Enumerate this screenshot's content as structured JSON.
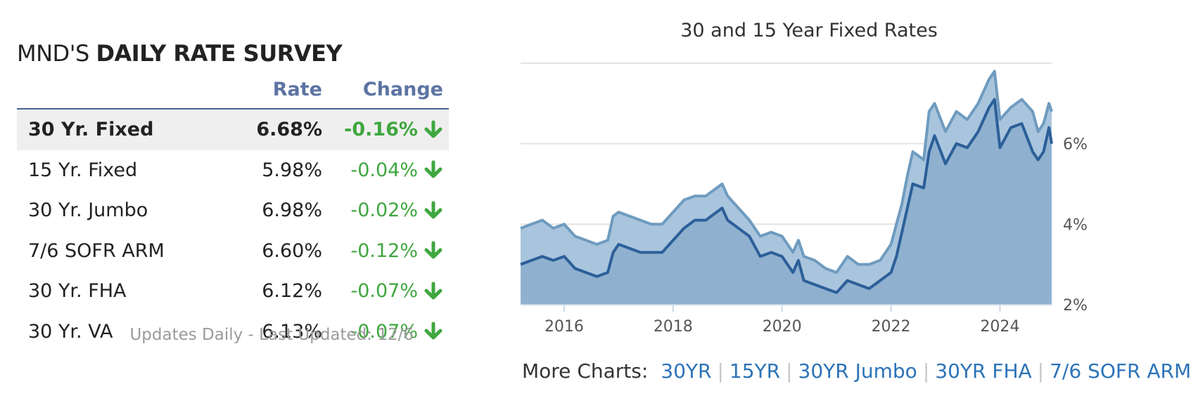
{
  "survey": {
    "title_prefix": "MND'S ",
    "title_bold": "DAILY RATE SURVEY",
    "col_rate": "Rate",
    "col_change": "Change",
    "rows": [
      {
        "product": "30 Yr. Fixed",
        "rate": "6.68%",
        "change": "-0.16%",
        "direction": "down"
      },
      {
        "product": "15 Yr. Fixed",
        "rate": "5.98%",
        "change": "-0.04%",
        "direction": "down"
      },
      {
        "product": "30 Yr. Jumbo",
        "rate": "6.98%",
        "change": "-0.02%",
        "direction": "down"
      },
      {
        "product": "7/6 SOFR ARM",
        "rate": "6.60%",
        "change": "-0.12%",
        "direction": "down"
      },
      {
        "product": "30 Yr. FHA",
        "rate": "6.12%",
        "change": "-0.07%",
        "direction": "down"
      },
      {
        "product": "30 Yr. VA",
        "rate": "6.13%",
        "change": "-0.07%",
        "direction": "down"
      }
    ],
    "updated": "Updates Daily - Last Updated: 12/6",
    "colors": {
      "header": "#5d74a3",
      "change_down": "#3fa73f"
    }
  },
  "more_charts": {
    "label": "More Charts:",
    "links": [
      "30YR",
      "15YR",
      "30YR Jumbo",
      "30YR FHA",
      "7/6 SOFR ARM"
    ]
  },
  "chart_data": {
    "type": "area",
    "title": "30 and 15 Year Fixed Rates",
    "x_ticks": [
      "2016",
      "2018",
      "2020",
      "2022",
      "2024"
    ],
    "y_ticks": [
      "2%",
      "4%",
      "6%"
    ],
    "ylim": [
      2,
      8
    ],
    "xlim": [
      2015.2,
      2024.95
    ],
    "y_axis_side": "right",
    "grid": "horizontal",
    "legend": "none",
    "colors": {
      "series_30yr_line": "#6f9bbf",
      "series_15yr_line": "#2c5f99",
      "area_fill": "#8fb1cf",
      "grid": "#e3e3e3"
    },
    "series": [
      {
        "x": [
          2015.2,
          2015.4,
          2015.6,
          2015.8,
          2016.0,
          2016.2,
          2016.4,
          2016.6,
          2016.8,
          2016.9,
          2017.0,
          2017.2,
          2017.4,
          2017.6,
          2017.8,
          2018.0,
          2018.2,
          2018.4,
          2018.6,
          2018.8,
          2018.9,
          2019.0,
          2019.2,
          2019.4,
          2019.6,
          2019.8,
          2020.0,
          2020.2,
          2020.3,
          2020.4,
          2020.6,
          2020.8,
          2021.0,
          2021.2,
          2021.4,
          2021.6,
          2021.8,
          2022.0,
          2022.1,
          2022.2,
          2022.3,
          2022.4,
          2022.6,
          2022.7,
          2022.8,
          2023.0,
          2023.2,
          2023.4,
          2023.6,
          2023.8,
          2023.9,
          2024.0,
          2024.2,
          2024.4,
          2024.6,
          2024.7,
          2024.8,
          2024.9,
          2024.95
        ],
        "values": [
          3.9,
          4.0,
          4.1,
          3.9,
          4.0,
          3.7,
          3.6,
          3.5,
          3.6,
          4.2,
          4.3,
          4.2,
          4.1,
          4.0,
          4.0,
          4.3,
          4.6,
          4.7,
          4.7,
          4.9,
          5.0,
          4.7,
          4.4,
          4.1,
          3.7,
          3.8,
          3.7,
          3.3,
          3.6,
          3.2,
          3.1,
          2.9,
          2.8,
          3.2,
          3.0,
          3.0,
          3.1,
          3.5,
          4.0,
          4.5,
          5.2,
          5.8,
          5.6,
          6.8,
          7.0,
          6.3,
          6.8,
          6.6,
          7.0,
          7.6,
          7.8,
          6.6,
          6.9,
          7.1,
          6.8,
          6.3,
          6.5,
          7.0,
          6.8
        ]
      },
      {
        "x": [
          2015.2,
          2015.4,
          2015.6,
          2015.8,
          2016.0,
          2016.2,
          2016.4,
          2016.6,
          2016.8,
          2016.9,
          2017.0,
          2017.2,
          2017.4,
          2017.6,
          2017.8,
          2018.0,
          2018.2,
          2018.4,
          2018.6,
          2018.8,
          2018.9,
          2019.0,
          2019.2,
          2019.4,
          2019.6,
          2019.8,
          2020.0,
          2020.2,
          2020.3,
          2020.4,
          2020.6,
          2020.8,
          2021.0,
          2021.2,
          2021.4,
          2021.6,
          2021.8,
          2022.0,
          2022.1,
          2022.2,
          2022.3,
          2022.4,
          2022.6,
          2022.7,
          2022.8,
          2023.0,
          2023.2,
          2023.4,
          2023.6,
          2023.8,
          2023.9,
          2024.0,
          2024.2,
          2024.4,
          2024.6,
          2024.7,
          2024.8,
          2024.9,
          2024.95
        ],
        "values": [
          3.0,
          3.1,
          3.2,
          3.1,
          3.2,
          2.9,
          2.8,
          2.7,
          2.8,
          3.3,
          3.5,
          3.4,
          3.3,
          3.3,
          3.3,
          3.6,
          3.9,
          4.1,
          4.1,
          4.3,
          4.4,
          4.1,
          3.9,
          3.7,
          3.2,
          3.3,
          3.2,
          2.8,
          3.1,
          2.6,
          2.5,
          2.4,
          2.3,
          2.6,
          2.5,
          2.4,
          2.6,
          2.8,
          3.2,
          3.8,
          4.4,
          5.0,
          4.9,
          5.8,
          6.2,
          5.5,
          6.0,
          5.9,
          6.3,
          6.9,
          7.1,
          5.9,
          6.4,
          6.5,
          5.8,
          5.6,
          5.8,
          6.4,
          6.0
        ]
      }
    ]
  }
}
